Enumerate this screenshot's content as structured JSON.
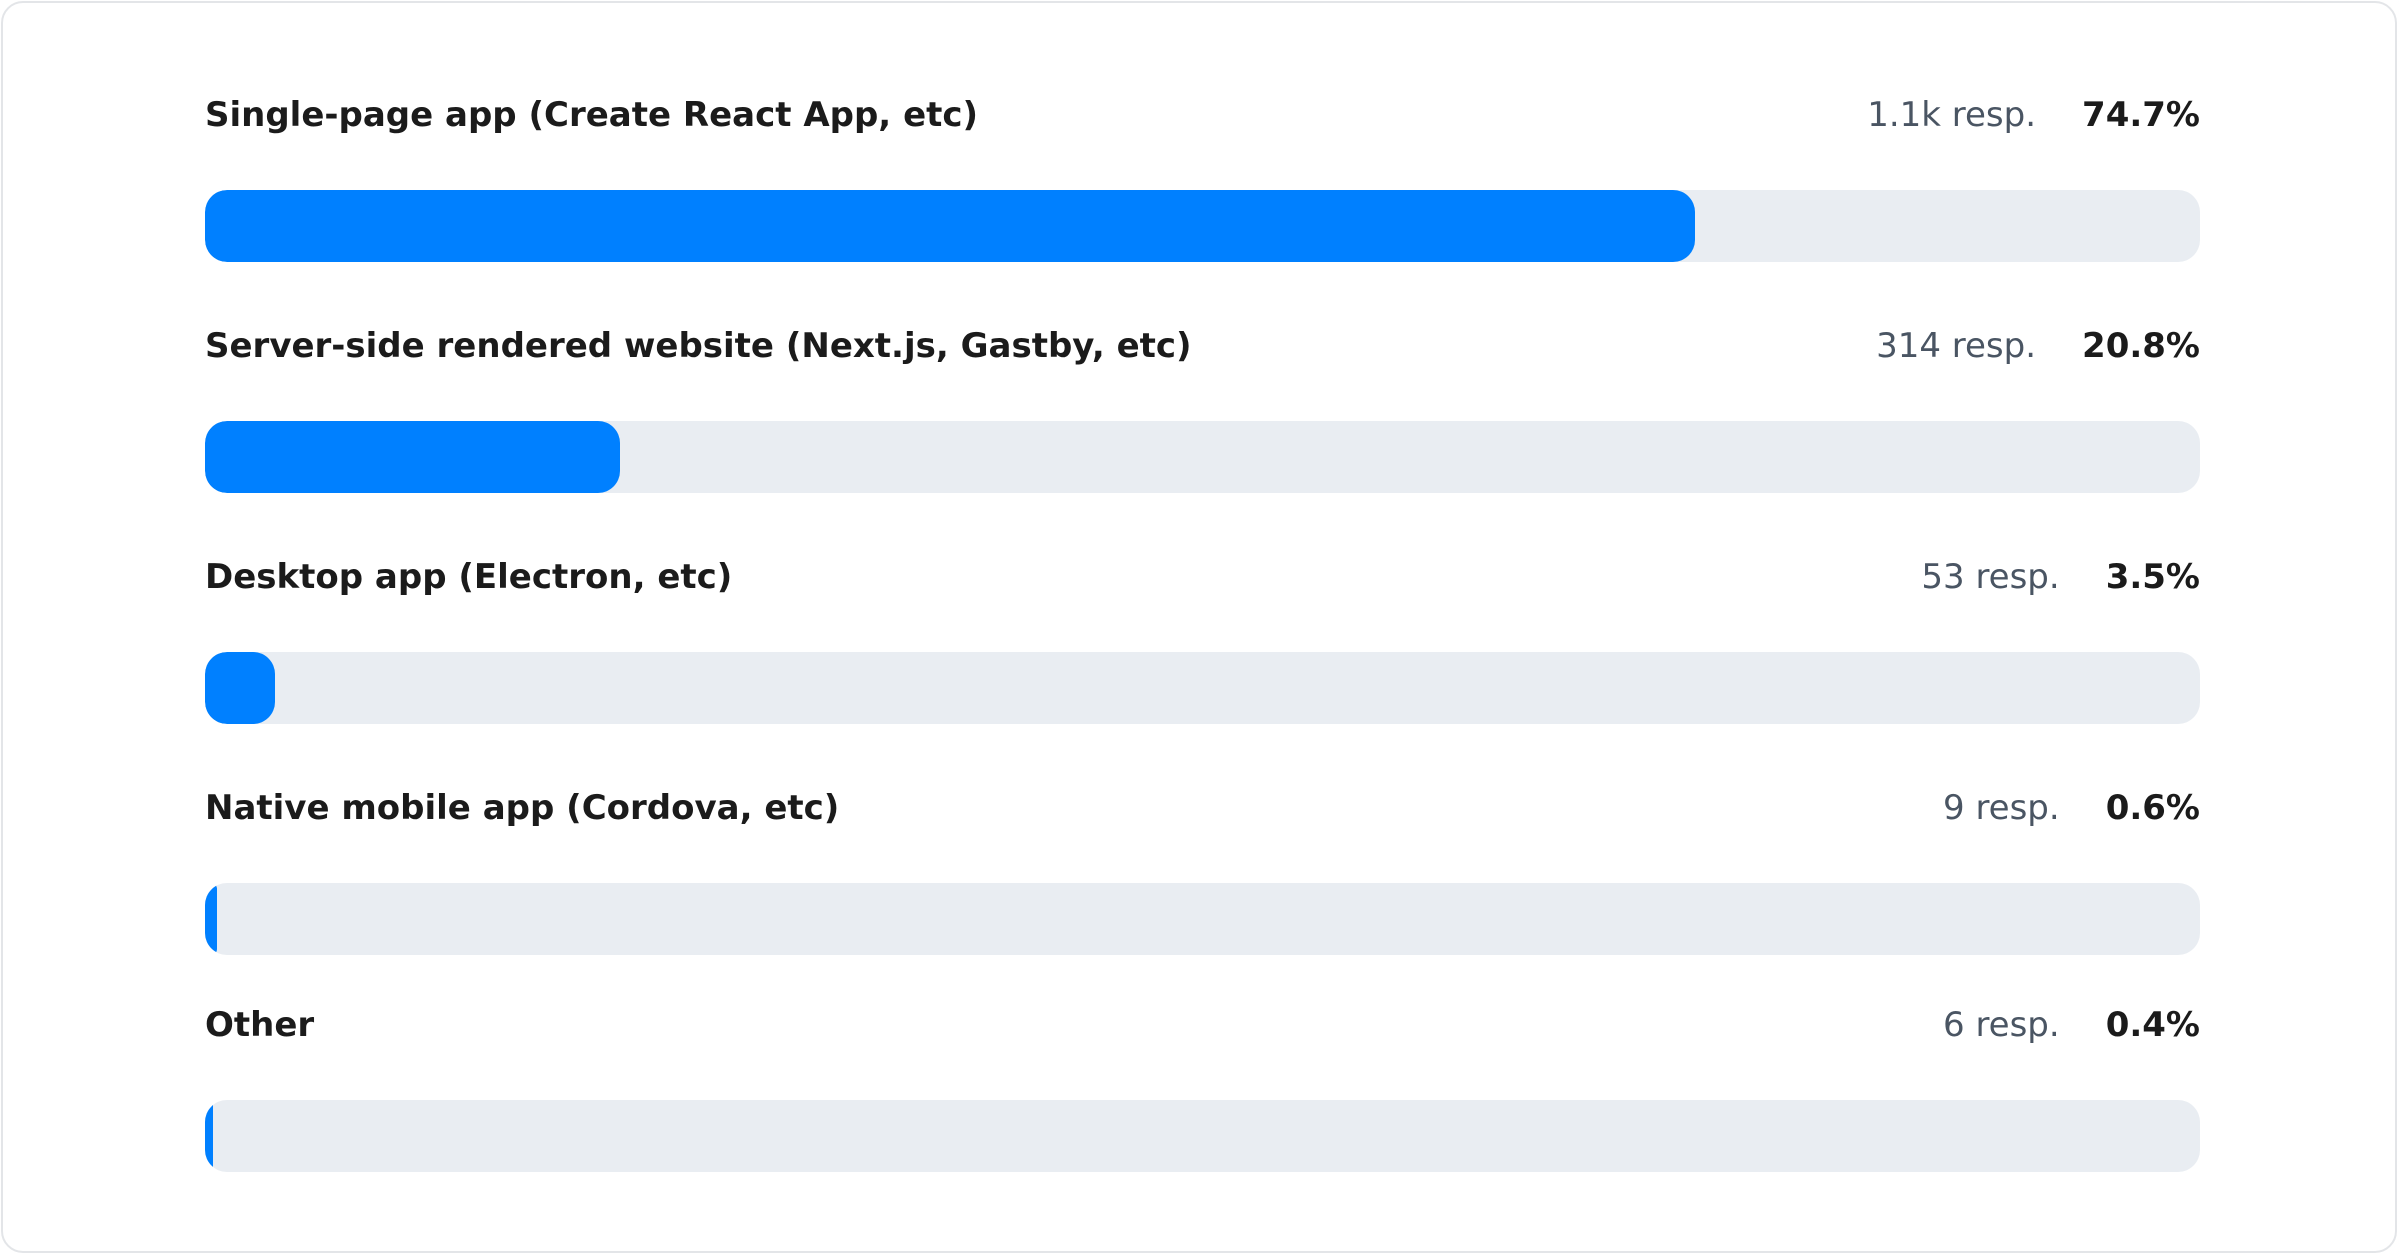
{
  "chart_data": {
    "type": "bar",
    "orientation": "horizontal",
    "colors": {
      "fill": "#0080ff",
      "track": "#e9edf2"
    },
    "items": [
      {
        "label": "Single-page app (Create React App, etc)",
        "responses": "1.1k resp.",
        "percent_label": "74.7%",
        "value": 74.7
      },
      {
        "label": "Server-side rendered website (Next.js, Gastby, etc)",
        "responses": "314 resp.",
        "percent_label": "20.8%",
        "value": 20.8
      },
      {
        "label": "Desktop app (Electron, etc)",
        "responses": "53 resp.",
        "percent_label": "3.5%",
        "value": 3.5
      },
      {
        "label": "Native mobile app (Cordova, etc)",
        "responses": "9 resp.",
        "percent_label": "0.6%",
        "value": 0.6
      },
      {
        "label": "Other",
        "responses": "6 resp.",
        "percent_label": "0.4%",
        "value": 0.4
      }
    ],
    "xlim": [
      0,
      100
    ]
  }
}
